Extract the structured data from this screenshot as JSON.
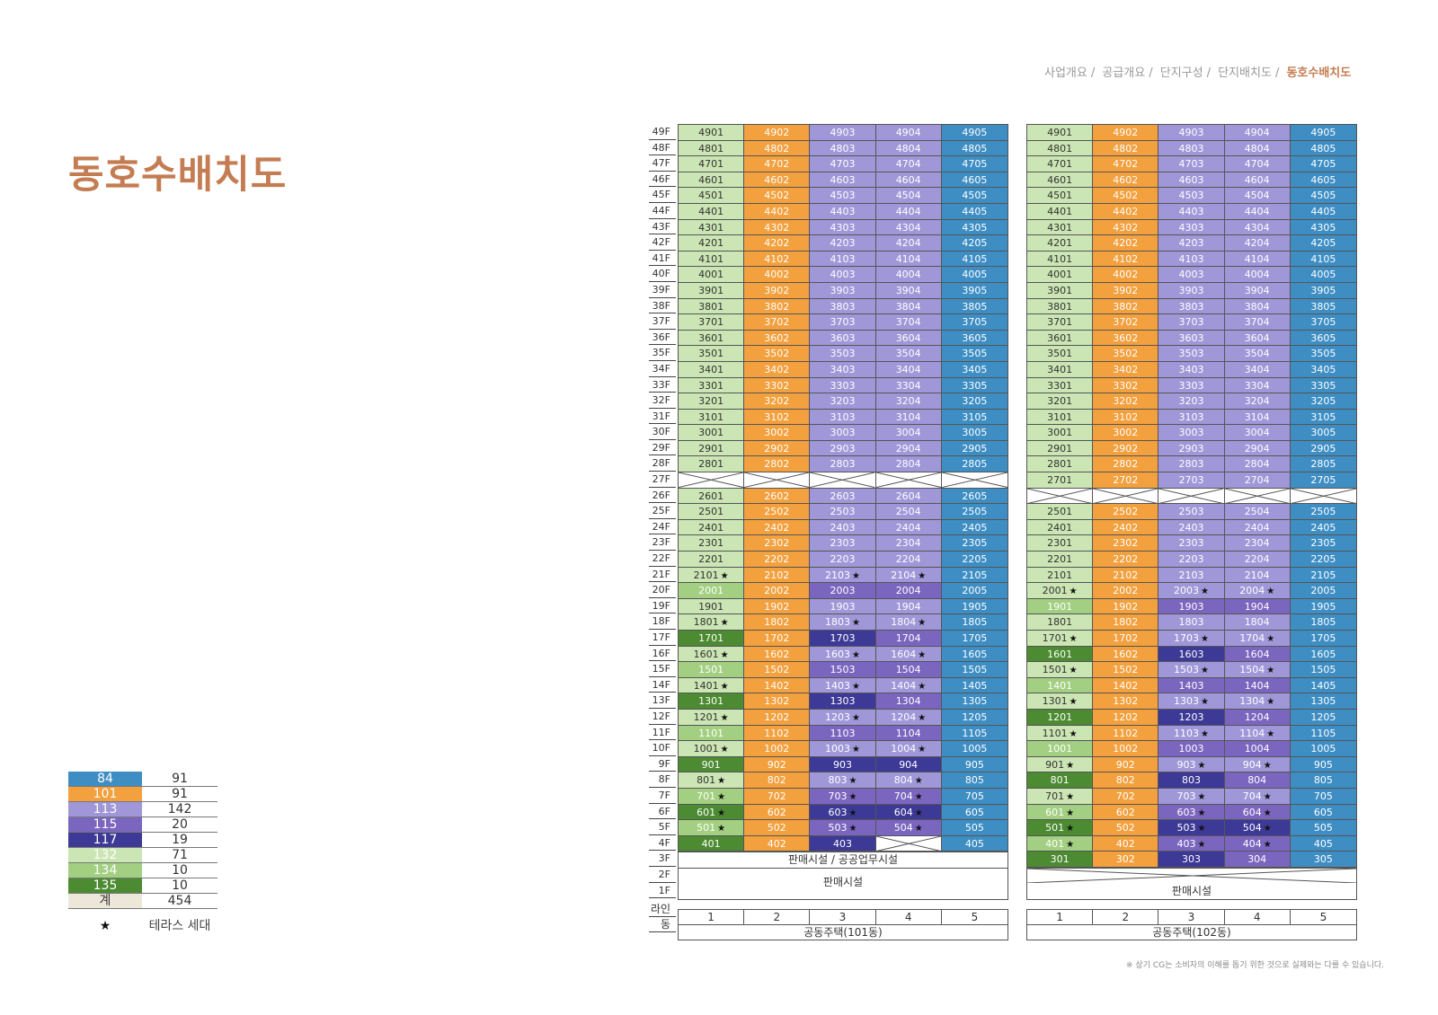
{
  "breadcrumb": [
    "사업개요",
    "공급개요",
    "단지구성",
    "단지배치도",
    "동호수배치도"
  ],
  "page_title": "동호수배치도",
  "legend": [
    {
      "type": "84",
      "count": "91",
      "color": "#3e8ec4"
    },
    {
      "type": "101",
      "count": "91",
      "color": "#f3a03e"
    },
    {
      "type": "113",
      "count": "142",
      "color": "#9f97d8"
    },
    {
      "type": "115",
      "count": "20",
      "color": "#7a66bf"
    },
    {
      "type": "117",
      "count": "19",
      "color": "#3d3996"
    },
    {
      "type": "132",
      "count": "71",
      "color": "#cbe5b4"
    },
    {
      "type": "134",
      "count": "10",
      "color": "#a2cf81"
    },
    {
      "type": "135",
      "count": "10",
      "color": "#4c8b32"
    }
  ],
  "legend_total": {
    "label": "계",
    "count": "454"
  },
  "legend_star": {
    "symbol": "★",
    "label": "테라스 세대"
  },
  "floors": [
    "49F",
    "48F",
    "47F",
    "46F",
    "45F",
    "44F",
    "43F",
    "42F",
    "41F",
    "40F",
    "39F",
    "38F",
    "37F",
    "36F",
    "35F",
    "34F",
    "33F",
    "32F",
    "31F",
    "30F",
    "29F",
    "28F",
    "27F",
    "26F",
    "25F",
    "24F",
    "23F",
    "22F",
    "21F",
    "20F",
    "19F",
    "18F",
    "17F",
    "16F",
    "15F",
    "14F",
    "13F",
    "12F",
    "11F",
    "10F",
    "9F",
    "8F",
    "7F",
    "6F",
    "5F",
    "4F",
    "3F",
    "2F",
    "1F"
  ],
  "bottom_labels": {
    "line": "라인",
    "dong": "동"
  },
  "buildings": [
    {
      "name": "공동주택(101동)",
      "lines": [
        "1",
        "2",
        "3",
        "4",
        "5"
      ],
      "retail_3f": "판매시설 / 공공업무시설",
      "retail_12f": "판매시설",
      "empty_floor": 27,
      "overrides": {
        "21": [
          [
            "132",
            true
          ],
          [
            "101",
            false
          ],
          [
            "113",
            true
          ],
          [
            "113",
            true
          ],
          [
            "84",
            false
          ]
        ],
        "20": [
          [
            "134",
            false
          ],
          [
            "101",
            false
          ],
          [
            "115",
            false
          ],
          [
            "115",
            false
          ],
          [
            "84",
            false
          ]
        ],
        "19": [
          [
            "132",
            false
          ],
          [
            "101",
            false
          ],
          [
            "113",
            false
          ],
          [
            "113",
            false
          ],
          [
            "84",
            false
          ]
        ],
        "18": [
          [
            "132",
            true
          ],
          [
            "101",
            false
          ],
          [
            "113",
            true
          ],
          [
            "113",
            true
          ],
          [
            "84",
            false
          ]
        ],
        "17": [
          [
            "135",
            false
          ],
          [
            "101",
            false
          ],
          [
            "117",
            false
          ],
          [
            "115",
            false
          ],
          [
            "84",
            false
          ]
        ],
        "16": [
          [
            "132",
            true
          ],
          [
            "101",
            false
          ],
          [
            "113",
            true
          ],
          [
            "113",
            true
          ],
          [
            "84",
            false
          ]
        ],
        "15": [
          [
            "134",
            false
          ],
          [
            "101",
            false
          ],
          [
            "115",
            false
          ],
          [
            "115",
            false
          ],
          [
            "84",
            false
          ]
        ],
        "14": [
          [
            "132",
            true
          ],
          [
            "101",
            false
          ],
          [
            "113",
            true
          ],
          [
            "113",
            true
          ],
          [
            "84",
            false
          ]
        ],
        "13": [
          [
            "135",
            false
          ],
          [
            "101",
            false
          ],
          [
            "117",
            false
          ],
          [
            "115",
            false
          ],
          [
            "84",
            false
          ]
        ],
        "12": [
          [
            "132",
            true
          ],
          [
            "101",
            false
          ],
          [
            "113",
            true
          ],
          [
            "113",
            true
          ],
          [
            "84",
            false
          ]
        ],
        "11": [
          [
            "134",
            false
          ],
          [
            "101",
            false
          ],
          [
            "115",
            false
          ],
          [
            "115",
            false
          ],
          [
            "84",
            false
          ]
        ],
        "10": [
          [
            "132",
            true
          ],
          [
            "101",
            false
          ],
          [
            "113",
            true
          ],
          [
            "113",
            true
          ],
          [
            "84",
            false
          ]
        ],
        "9": [
          [
            "135",
            false
          ],
          [
            "101",
            false
          ],
          [
            "117",
            false
          ],
          [
            "117",
            false
          ],
          [
            "84",
            false
          ]
        ],
        "8": [
          [
            "132",
            true
          ],
          [
            "101",
            false
          ],
          [
            "113",
            true
          ],
          [
            "113",
            true
          ],
          [
            "84",
            false
          ]
        ],
        "7": [
          [
            "134",
            true
          ],
          [
            "101",
            false
          ],
          [
            "115",
            true
          ],
          [
            "115",
            true
          ],
          [
            "84",
            false
          ]
        ],
        "6": [
          [
            "135",
            true
          ],
          [
            "101",
            false
          ],
          [
            "117",
            true
          ],
          [
            "117",
            true
          ],
          [
            "84",
            false
          ]
        ],
        "5": [
          [
            "134",
            true
          ],
          [
            "101",
            false
          ],
          [
            "115",
            true
          ],
          [
            "115",
            true
          ],
          [
            "84",
            false
          ]
        ],
        "4": [
          [
            "135",
            false
          ],
          [
            "101",
            false
          ],
          [
            "117",
            false
          ],
          [
            "empty",
            false
          ],
          [
            "84",
            false
          ]
        ]
      }
    },
    {
      "name": "공동주택(102동)",
      "lines": [
        "1",
        "2",
        "3",
        "4",
        "5"
      ],
      "retail_12f": "판매시설",
      "empty_floor": 26,
      "overrides": {
        "21": [
          [
            "132",
            false
          ],
          [
            "101",
            false
          ],
          [
            "113",
            false
          ],
          [
            "113",
            false
          ],
          [
            "84",
            false
          ]
        ],
        "20": [
          [
            "132",
            true
          ],
          [
            "101",
            false
          ],
          [
            "113",
            true
          ],
          [
            "113",
            true
          ],
          [
            "84",
            false
          ]
        ],
        "19": [
          [
            "134",
            false
          ],
          [
            "101",
            false
          ],
          [
            "115",
            false
          ],
          [
            "115",
            false
          ],
          [
            "84",
            false
          ]
        ],
        "18": [
          [
            "132",
            false
          ],
          [
            "101",
            false
          ],
          [
            "113",
            false
          ],
          [
            "113",
            false
          ],
          [
            "84",
            false
          ]
        ],
        "17": [
          [
            "132",
            true
          ],
          [
            "101",
            false
          ],
          [
            "113",
            true
          ],
          [
            "113",
            true
          ],
          [
            "84",
            false
          ]
        ],
        "16": [
          [
            "135",
            false
          ],
          [
            "101",
            false
          ],
          [
            "117",
            false
          ],
          [
            "115",
            false
          ],
          [
            "84",
            false
          ]
        ],
        "15": [
          [
            "132",
            true
          ],
          [
            "101",
            false
          ],
          [
            "113",
            true
          ],
          [
            "113",
            true
          ],
          [
            "84",
            false
          ]
        ],
        "14": [
          [
            "134",
            false
          ],
          [
            "101",
            false
          ],
          [
            "115",
            false
          ],
          [
            "115",
            false
          ],
          [
            "84",
            false
          ]
        ],
        "13": [
          [
            "132",
            true
          ],
          [
            "101",
            false
          ],
          [
            "113",
            true
          ],
          [
            "113",
            true
          ],
          [
            "84",
            false
          ]
        ],
        "12": [
          [
            "135",
            false
          ],
          [
            "101",
            false
          ],
          [
            "117",
            false
          ],
          [
            "115",
            false
          ],
          [
            "84",
            false
          ]
        ],
        "11": [
          [
            "132",
            true
          ],
          [
            "101",
            false
          ],
          [
            "113",
            true
          ],
          [
            "113",
            true
          ],
          [
            "84",
            false
          ]
        ],
        "10": [
          [
            "134",
            false
          ],
          [
            "101",
            false
          ],
          [
            "115",
            false
          ],
          [
            "115",
            false
          ],
          [
            "84",
            false
          ]
        ],
        "9": [
          [
            "132",
            true
          ],
          [
            "101",
            false
          ],
          [
            "113",
            true
          ],
          [
            "113",
            true
          ],
          [
            "84",
            false
          ]
        ],
        "8": [
          [
            "135",
            false
          ],
          [
            "101",
            false
          ],
          [
            "117",
            false
          ],
          [
            "115",
            false
          ],
          [
            "84",
            false
          ]
        ],
        "7": [
          [
            "132",
            true
          ],
          [
            "101",
            false
          ],
          [
            "113",
            true
          ],
          [
            "113",
            true
          ],
          [
            "84",
            false
          ]
        ],
        "6": [
          [
            "134",
            true
          ],
          [
            "101",
            false
          ],
          [
            "115",
            true
          ],
          [
            "115",
            true
          ],
          [
            "84",
            false
          ]
        ],
        "5": [
          [
            "135",
            true
          ],
          [
            "101",
            false
          ],
          [
            "117",
            true
          ],
          [
            "117",
            true
          ],
          [
            "84",
            false
          ]
        ],
        "4": [
          [
            "134",
            true
          ],
          [
            "101",
            false
          ],
          [
            "115",
            true
          ],
          [
            "115",
            true
          ],
          [
            "84",
            false
          ]
        ],
        "3": [
          [
            "135",
            false
          ],
          [
            "101",
            false
          ],
          [
            "117",
            false
          ],
          [
            "115",
            false
          ],
          [
            "84",
            false
          ]
        ]
      }
    }
  ],
  "note": "※ 상기 CG는 소비자의 이해를 돕기 위한 것으로 실제와는 다를 수 있습니다."
}
